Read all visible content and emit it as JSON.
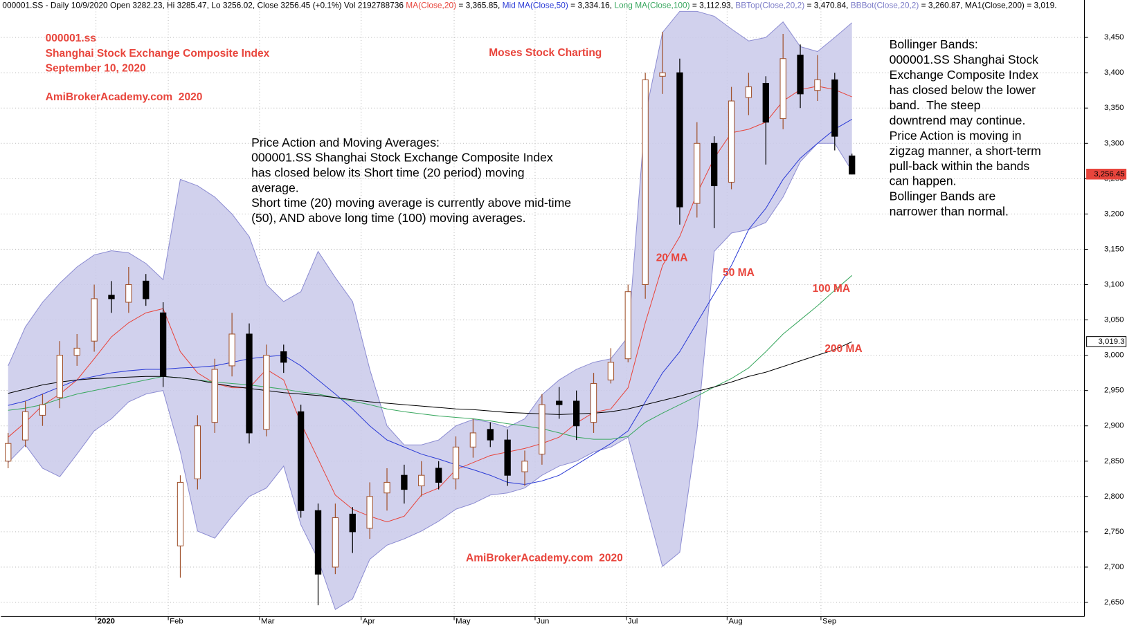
{
  "chart_data": {
    "type": "candlestick",
    "header": [
      {
        "text": "000001.SS - Daily 10/9/2020 Open 3282.23, Hi 3285.47, Lo 3256.02, Close 3256.45 (+0.1%) Vol 2192788736 ",
        "color": "#000000"
      },
      {
        "text": "MA(Close,20)",
        "color": "#e8453c"
      },
      {
        "text": " = 3,365.85, ",
        "color": "#000000"
      },
      {
        "text": "Mid MA(Close,50)",
        "color": "#2b3bd6"
      },
      {
        "text": " = 3,334.16, ",
        "color": "#000000"
      },
      {
        "text": "Long MA(Close,100)",
        "color": "#3aa860"
      },
      {
        "text": " = 3,112.93, ",
        "color": "#000000"
      },
      {
        "text": "BBTop(Close,20,2)",
        "color": "#7d7dc8"
      },
      {
        "text": " = 3,470.84, ",
        "color": "#000000"
      },
      {
        "text": "BBBot(Close,20,2)",
        "color": "#7d7dc8"
      },
      {
        "text": " = 3,260.87, ",
        "color": "#000000"
      },
      {
        "text": "MA1(Close,200)",
        "color": "#000000"
      },
      {
        "text": " = 3,019.",
        "color": "#000000"
      }
    ],
    "titles": [
      "000001.ss",
      "Shanghai Stock Exchange Composite Index",
      "September 10, 2020"
    ],
    "site": "AmiBrokerAcademy.com  2020",
    "brand": "Moses Stock Charting",
    "footer_site": "AmiBrokerAcademy.com  2020",
    "price_action_note": [
      "Price Action and Moving Averages:",
      "000001.SS Shanghai Stock Exchange Composite Index",
      "has closed below its Short time (20 period) moving",
      "average.",
      "Short time (20) moving average is currently above mid-time",
      "(50), AND above long time (100) moving averages."
    ],
    "bollinger_note": [
      "Bollinger Bands:",
      "000001.SS Shanghai Stock",
      "Exchange Composite Index",
      "has closed below the lower",
      "band.  The steep",
      "downtrend may continue.",
      "Price Action is moving in",
      "zigzag manner, a short-term",
      "pull-back within the bands",
      "can happen.",
      "Bollinger Bands are",
      "narrower than normal."
    ],
    "ma_labels": [
      "20 MA",
      "50 MA",
      "100 MA",
      "200 MA"
    ],
    "up_color": "#a0522d",
    "down_color": "#000000",
    "open": [
      2850,
      2880,
      2915,
      2940,
      3000,
      3020,
      3085,
      3075,
      3105,
      3060,
      2730,
      2825,
      2905,
      2985,
      3030,
      2895,
      3005,
      2920,
      2780,
      2700,
      2775,
      2755,
      2805,
      2830,
      2815,
      2840,
      2825,
      2870,
      2895,
      2880,
      2835,
      2860,
      2935,
      2935,
      2905,
      2965,
      2995,
      3100,
      3395,
      3400,
      3215,
      3300,
      3245,
      3365,
      3385,
      3335,
      3425,
      3375,
      3390,
      3282.23
    ],
    "high": [
      2890,
      2935,
      2945,
      3020,
      3030,
      3100,
      3105,
      3125,
      3115,
      3075,
      2830,
      2915,
      2995,
      3060,
      3045,
      3015,
      3015,
      2930,
      2790,
      2790,
      2785,
      2820,
      2840,
      2845,
      2850,
      2850,
      2885,
      2910,
      2905,
      2895,
      2865,
      2945,
      2955,
      2950,
      2975,
      3010,
      3100,
      3400,
      3458,
      3420,
      3330,
      3310,
      3380,
      3400,
      3395,
      3455,
      3440,
      3425,
      3400,
      3285.47
    ],
    "low": [
      2840,
      2870,
      2900,
      2925,
      2985,
      3005,
      3060,
      3060,
      3070,
      2955,
      2685,
      2810,
      2890,
      2970,
      2875,
      2885,
      2975,
      2770,
      2646,
      2690,
      2720,
      2740,
      2780,
      2790,
      2800,
      2810,
      2810,
      2855,
      2870,
      2815,
      2815,
      2845,
      2910,
      2880,
      2890,
      2960,
      2990,
      3080,
      3370,
      3185,
      3195,
      3180,
      3235,
      3340,
      3270,
      3320,
      3350,
      3360,
      3290,
      3256.02
    ],
    "close": [
      2875,
      2920,
      2930,
      3000,
      3010,
      3080,
      3080,
      3100,
      3080,
      2970,
      2820,
      2900,
      2980,
      3030,
      2890,
      3000,
      2990,
      2780,
      2690,
      2770,
      2750,
      2800,
      2820,
      2810,
      2830,
      2820,
      2870,
      2890,
      2880,
      2830,
      2850,
      2930,
      2930,
      2900,
      2960,
      2990,
      3090,
      3390,
      3400,
      3210,
      3300,
      3240,
      3360,
      3380,
      3330,
      3420,
      3370,
      3390,
      3310,
      3256.45
    ],
    "bands": {
      "color": "#c9c9ea",
      "stroke": "#8d8dd2",
      "upper": [
        2985,
        3040,
        3075,
        3102,
        3125,
        3142,
        3148,
        3145,
        3130,
        3107,
        3249,
        3240,
        3224,
        3200,
        3168,
        3100,
        3076,
        3090,
        3147,
        3110,
        3076,
        2980,
        2900,
        2873,
        2873,
        2880,
        2900,
        2909,
        2905,
        2898,
        2910,
        2944,
        2965,
        2980,
        2990,
        2995,
        3026,
        3340,
        3457,
        3487,
        3487,
        3480,
        3462,
        3445,
        3450,
        3472,
        3437,
        3430,
        3450,
        3470.84
      ],
      "lower": [
        2848,
        2873,
        2840,
        2828,
        2860,
        2893,
        2910,
        2934,
        2945,
        2950,
        2863,
        2751,
        2741,
        2772,
        2800,
        2812,
        2843,
        2760,
        2711,
        2640,
        2655,
        2711,
        2731,
        2740,
        2751,
        2765,
        2782,
        2790,
        2802,
        2805,
        2812,
        2830,
        2843,
        2850,
        2863,
        2870,
        2884,
        2792,
        2701,
        2721,
        2893,
        3147,
        3173,
        3178,
        3188,
        3224,
        3274,
        3300,
        3300,
        3260.87
      ]
    },
    "overlays": [
      {
        "color": "#e8453c",
        "values": [
          2884,
          2905,
          2929,
          2945,
          2965,
          2995,
          3026,
          3046,
          3060,
          3066,
          3005,
          2975,
          2960,
          2954,
          2954,
          2980,
          2965,
          2904,
          2853,
          2802,
          2782,
          2772,
          2764,
          2772,
          2802,
          2812,
          2838,
          2848,
          2858,
          2863,
          2868,
          2875,
          2884,
          2904,
          2919,
          2924,
          2954,
          3046,
          3127,
          3168,
          3229,
          3279,
          3315,
          3320,
          3330,
          3360,
          3376,
          3381,
          3376,
          3365.85
        ]
      },
      {
        "color": "#2b3bd6",
        "values": [
          2929,
          2935,
          2945,
          2955,
          2965,
          2970,
          2975,
          2978,
          2980,
          2980,
          2982,
          2983,
          2985,
          2990,
          2995,
          2998,
          3000,
          2985,
          2965,
          2945,
          2924,
          2900,
          2880,
          2870,
          2860,
          2853,
          2845,
          2838,
          2830,
          2820,
          2817,
          2822,
          2830,
          2845,
          2860,
          2875,
          2893,
          2934,
          2975,
          3005,
          3046,
          3087,
          3127,
          3178,
          3208,
          3249,
          3279,
          3300,
          3320,
          3334.16
        ]
      },
      {
        "color": "#3aa860",
        "values": [
          2922,
          2925,
          2930,
          2938,
          2945,
          2950,
          2955,
          2960,
          2965,
          2970,
          2968,
          2965,
          2962,
          2960,
          2958,
          2955,
          2952,
          2948,
          2945,
          2940,
          2935,
          2930,
          2924,
          2920,
          2917,
          2914,
          2912,
          2910,
          2907,
          2903,
          2900,
          2896,
          2890,
          2884,
          2881,
          2881,
          2885,
          2905,
          2918,
          2930,
          2942,
          2955,
          2967,
          2982,
          3005,
          3030,
          3050,
          3070,
          3092,
          3112.93
        ]
      },
      {
        "color": "#000000",
        "values": [
          2946,
          2952,
          2958,
          2962,
          2965,
          2967,
          2968,
          2969,
          2970,
          2970,
          2968,
          2965,
          2960,
          2956,
          2953,
          2950,
          2947,
          2945,
          2943,
          2940,
          2937,
          2934,
          2932,
          2930,
          2928,
          2926,
          2924,
          2923,
          2921,
          2919,
          2918,
          2917,
          2916,
          2917,
          2918,
          2920,
          2924,
          2930,
          2936,
          2942,
          2949,
          2955,
          2962,
          2970,
          2976,
          2984,
          2992,
          3000,
          3008,
          3019
        ]
      }
    ],
    "ylim": [
      2630,
      3503
    ],
    "yticks": [
      {
        "value": 2650,
        "label": "2,650"
      },
      {
        "value": 2700,
        "label": "2,700"
      },
      {
        "value": 2750,
        "label": "2,750"
      },
      {
        "value": 2800,
        "label": "2,800"
      },
      {
        "value": 2850,
        "label": "2,850"
      },
      {
        "value": 2900,
        "label": "2,900"
      },
      {
        "value": 2950,
        "label": "2,950"
      },
      {
        "value": 3000,
        "label": "3,000"
      },
      {
        "value": 3050,
        "label": "3,050"
      },
      {
        "value": 3100,
        "label": "3,100"
      },
      {
        "value": 3150,
        "label": "3,150"
      },
      {
        "value": 3200,
        "label": "3,200"
      },
      {
        "value": 3250,
        "label": "3,250"
      },
      {
        "value": 3300,
        "label": "3,300"
      },
      {
        "value": 3350,
        "label": "3,350"
      },
      {
        "value": 3400,
        "label": "3,400"
      },
      {
        "value": 3450,
        "label": "3,450"
      }
    ],
    "xticks": [
      {
        "value": 5.1,
        "label": "2020"
      },
      {
        "value": 9.3,
        "label": "Feb"
      },
      {
        "value": 14.6,
        "label": "Mar"
      },
      {
        "value": 20.5,
        "label": "Apr"
      },
      {
        "value": 25.9,
        "label": "May"
      },
      {
        "value": 30.6,
        "label": "Jun"
      },
      {
        "value": 35.9,
        "label": "Jul"
      },
      {
        "value": 41.75,
        "label": "Aug"
      },
      {
        "value": 47.2,
        "label": "Sep"
      }
    ],
    "price_tags": [
      {
        "value": 3256.45,
        "label": "3,256.45",
        "color": "#e8453c"
      },
      {
        "value": 3019.3,
        "label": "3,019.3",
        "color": "#000000"
      }
    ],
    "grid": true
  }
}
